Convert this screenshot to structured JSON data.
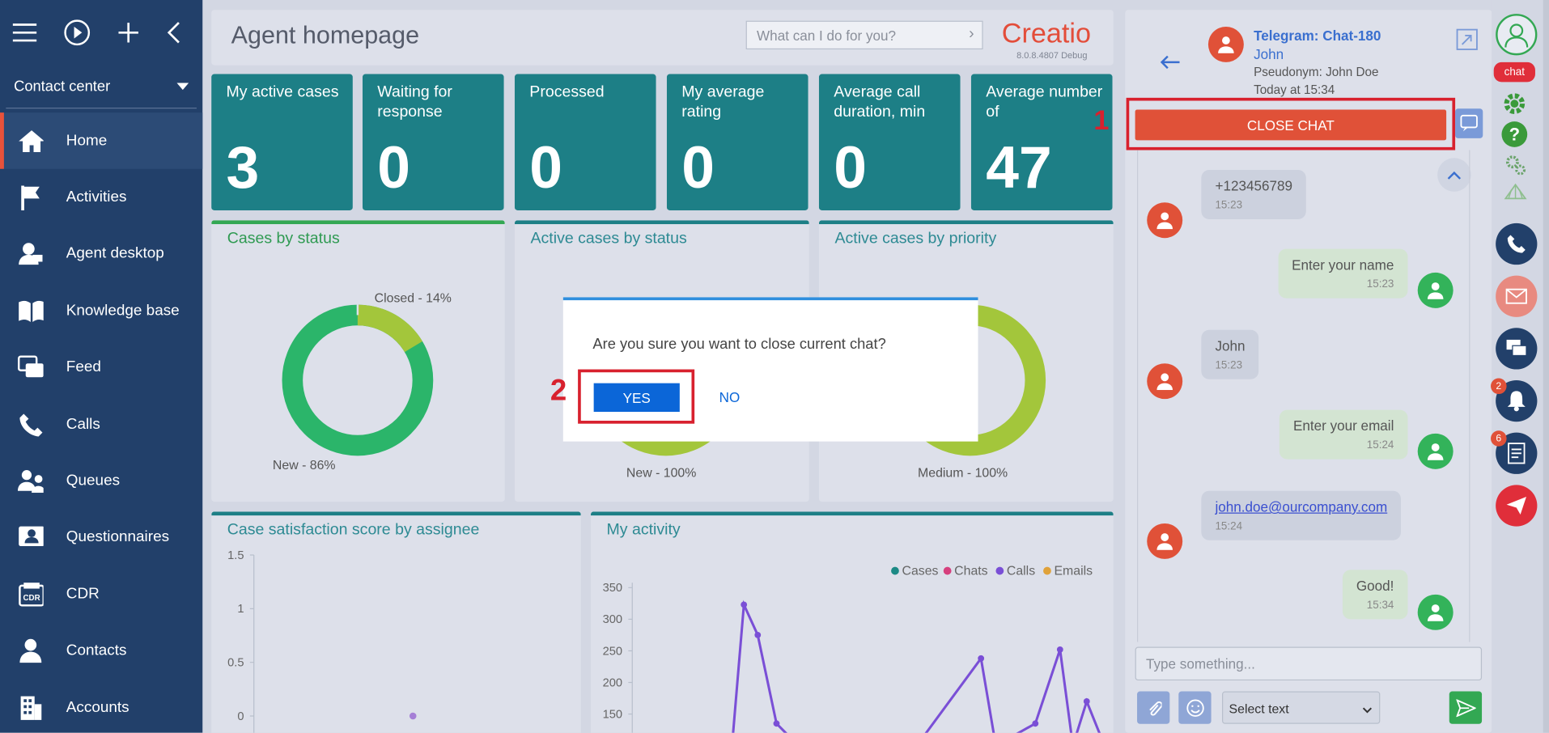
{
  "sidebar": {
    "workplace": "Contact center",
    "items": [
      {
        "label": "Home"
      },
      {
        "label": "Activities"
      },
      {
        "label": "Agent desktop"
      },
      {
        "label": "Knowledge base"
      },
      {
        "label": "Feed"
      },
      {
        "label": "Calls"
      },
      {
        "label": "Queues"
      },
      {
        "label": "Questionnaires"
      },
      {
        "label": "CDR"
      },
      {
        "label": "Contacts"
      },
      {
        "label": "Accounts"
      }
    ]
  },
  "header": {
    "title": "Agent homepage",
    "search_placeholder": "What can I do for you?",
    "logo": "Creatio",
    "version": "8.0.8.4807 Debug"
  },
  "metrics": [
    {
      "label": "My active cases",
      "value": "3"
    },
    {
      "label": "Waiting for response",
      "value": "0"
    },
    {
      "label": "Processed",
      "value": "0"
    },
    {
      "label": "My average rating",
      "value": "0"
    },
    {
      "label": "Average call duration, min",
      "value": "0"
    },
    {
      "label": "Average number of",
      "value": "47"
    }
  ],
  "panels": {
    "cases_by_status": {
      "title": "Cases by status",
      "closed": "Closed - 14%",
      "new": "New - 86%"
    },
    "active_by_status": {
      "title": "Active cases by status",
      "new": "New - 100%"
    },
    "active_by_priority": {
      "title": "Active cases by priority",
      "medium": "Medium - 100%"
    },
    "satisfaction": {
      "title": "Case satisfaction score by assignee"
    },
    "activity": {
      "title": "My activity"
    }
  },
  "chart_data": [
    {
      "type": "pie",
      "title": "Cases by status",
      "categories": [
        "Closed",
        "New"
      ],
      "values": [
        14,
        86
      ],
      "colors": [
        "#a3c63b",
        "#2bb56a"
      ]
    },
    {
      "type": "scatter",
      "title": "Case satisfaction score by assignee",
      "ylim": [
        0,
        1.5
      ],
      "yticks": [
        "1.5",
        "1",
        "0.5",
        "0"
      ],
      "points": [
        {
          "y": 0
        }
      ]
    },
    {
      "type": "line",
      "title": "My activity",
      "yticks": [
        "350",
        "300",
        "250",
        "200",
        "150"
      ],
      "legend": [
        "Cases",
        "Chats",
        "Calls",
        "Emails"
      ],
      "legend_colors": [
        "#1d8a86",
        "#d6407e",
        "#7a4fd6",
        "#e0a23a"
      ],
      "series": [
        {
          "name": "Calls",
          "values": [
            100,
            323,
            275,
            135,
            100,
            100,
            100,
            238,
            100,
            135,
            252,
            100,
            170,
            100
          ]
        }
      ]
    }
  ],
  "modal": {
    "question": "Are you sure you want to close current chat?",
    "yes": "YES",
    "no": "NO",
    "step2": "2"
  },
  "chat": {
    "channel": "Telegram: Chat-180",
    "contact": "John",
    "pseudonym": "Pseudonym: John Doe",
    "time": "Today at 15:34",
    "close_label": "CLOSE CHAT",
    "step1": "1",
    "messages": [
      {
        "dir": "in",
        "text": "+123456789",
        "time": "15:23"
      },
      {
        "dir": "out",
        "text": "Enter your name",
        "time": "15:23"
      },
      {
        "dir": "in",
        "text": "John",
        "time": "15:23"
      },
      {
        "dir": "out",
        "text": "Enter your email",
        "time": "15:24"
      },
      {
        "dir": "in",
        "text": "john.doe@ourcompany.com",
        "time": "15:24"
      },
      {
        "dir": "out",
        "text": "Good!",
        "time": "15:34"
      }
    ],
    "input_placeholder": "Type something...",
    "select_label": "Select text"
  },
  "rightbar": {
    "chat_label": "chat",
    "notif_count": "2",
    "tasks_count": "6"
  },
  "colors": {
    "sidebar": "#22406a",
    "tile": "#1d7f86",
    "accent_red": "#e05138",
    "yes_blue": "#0b66d8"
  }
}
